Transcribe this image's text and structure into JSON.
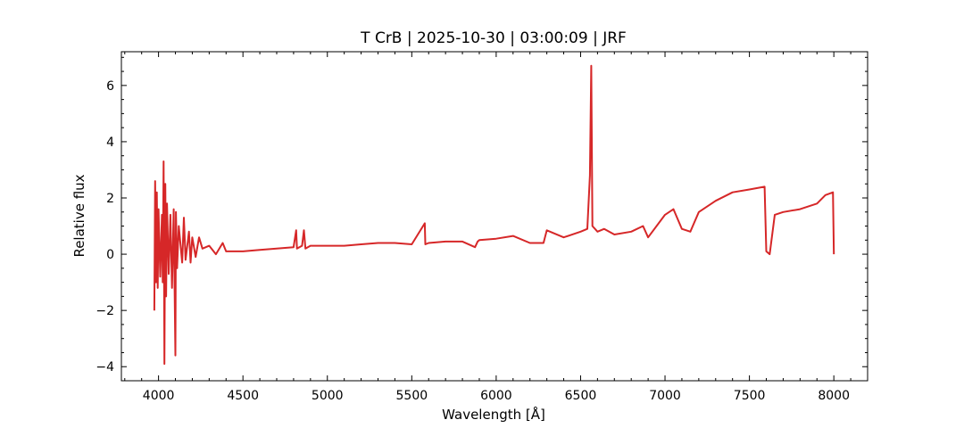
{
  "chart_data": {
    "type": "line",
    "title": "T CrB | 2025-10-30 | 03:00:09 | JRF",
    "xlabel": "Wavelength [Å]",
    "ylabel": "Relative flux",
    "xlim": [
      3780,
      8200
    ],
    "ylim": [
      -4.5,
      7.2
    ],
    "xticks": [
      4000,
      4500,
      5000,
      5500,
      6000,
      6500,
      7000,
      7500,
      8000
    ],
    "yticks": [
      -4,
      -2,
      0,
      2,
      4,
      6
    ],
    "ytick_labels": [
      "−4",
      "−2",
      "0",
      "2",
      "4",
      "6"
    ],
    "grid": false,
    "line_color": "#d62728",
    "series": [
      {
        "name": "",
        "x": [
          3975,
          3980,
          3985,
          3990,
          3995,
          4000,
          4010,
          4020,
          4025,
          4030,
          4035,
          4040,
          4045,
          4050,
          4060,
          4070,
          4080,
          4090,
          4100,
          4103,
          4110,
          4120,
          4140,
          4150,
          4160,
          4180,
          4190,
          4200,
          4220,
          4240,
          4260,
          4300,
          4340,
          4380,
          4400,
          4450,
          4500,
          4600,
          4700,
          4800,
          4815,
          4820,
          4850,
          4861,
          4870,
          4900,
          5000,
          5100,
          5200,
          5300,
          5400,
          5500,
          5577,
          5580,
          5600,
          5700,
          5800,
          5875,
          5890,
          5900,
          6000,
          6100,
          6200,
          6280,
          6300,
          6400,
          6500,
          6540,
          6555,
          6563,
          6570,
          6600,
          6640,
          6700,
          6800,
          6870,
          6900,
          7000,
          7050,
          7100,
          7150,
          7200,
          7300,
          7400,
          7500,
          7590,
          7600,
          7620,
          7650,
          7700,
          7800,
          7900,
          7950,
          7995,
          8000
        ],
        "y": [
          -2.0,
          2.6,
          -1.0,
          2.2,
          -1.2,
          1.6,
          -0.8,
          1.4,
          -1.0,
          3.3,
          -3.9,
          2.5,
          -1.5,
          1.8,
          -0.7,
          1.4,
          -1.2,
          1.6,
          -3.6,
          1.5,
          -0.5,
          1.0,
          -0.3,
          1.3,
          -0.2,
          0.8,
          -0.3,
          0.6,
          -0.1,
          0.6,
          0.2,
          0.3,
          0.0,
          0.4,
          0.1,
          0.1,
          0.1,
          0.15,
          0.2,
          0.25,
          0.85,
          0.2,
          0.3,
          0.85,
          0.2,
          0.3,
          0.3,
          0.3,
          0.35,
          0.4,
          0.4,
          0.35,
          1.1,
          0.35,
          0.4,
          0.45,
          0.45,
          0.25,
          0.45,
          0.5,
          0.55,
          0.65,
          0.4,
          0.4,
          0.85,
          0.6,
          0.8,
          0.9,
          2.8,
          6.7,
          1.0,
          0.8,
          0.9,
          0.7,
          0.8,
          1.0,
          0.6,
          1.4,
          1.6,
          0.9,
          0.8,
          1.5,
          1.9,
          2.2,
          2.3,
          2.4,
          0.1,
          0.0,
          1.4,
          1.5,
          1.6,
          1.8,
          2.1,
          2.2,
          0.0
        ]
      }
    ]
  }
}
